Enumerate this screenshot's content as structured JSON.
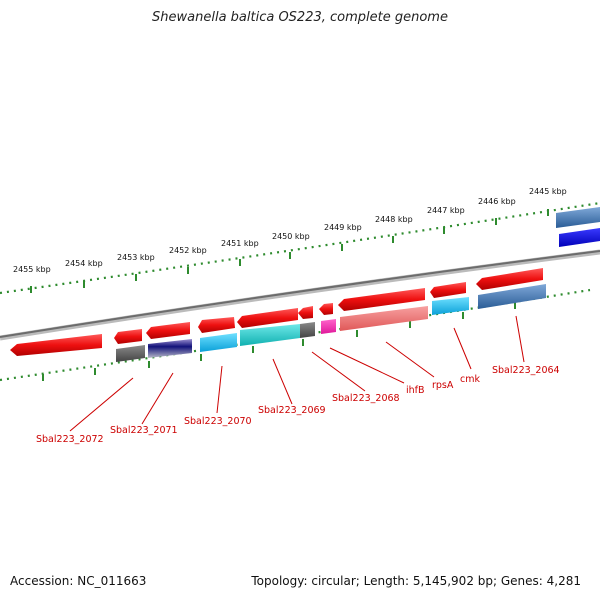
{
  "title": "Shewanella baltica OS223, complete genome",
  "footer": {
    "accession": "Accession: NC_011663",
    "topology": "Topology: circular; Length: 5,145,902 bp; Genes: 4,281"
  },
  "colors": {
    "background": "#ffffff",
    "backbone": "#888888",
    "tick": "#2e8b2e",
    "forward_gene": "#ee1111",
    "label": "#cc0000"
  },
  "scale_labels": [
    "2455 kbp",
    "2454 kbp",
    "2453 kbp",
    "2452 kbp",
    "2451 kbp",
    "2450 kbp",
    "2449 kbp",
    "2448 kbp",
    "2447 kbp",
    "2446 kbp",
    "2445 kbp"
  ],
  "gene_labels": [
    "Sbal223_2072",
    "Sbal223_2071",
    "Sbal223_2070",
    "Sbal223_2069",
    "Sbal223_2068",
    "ihfB",
    "rpsA",
    "cmk",
    "Sbal223_2064"
  ]
}
